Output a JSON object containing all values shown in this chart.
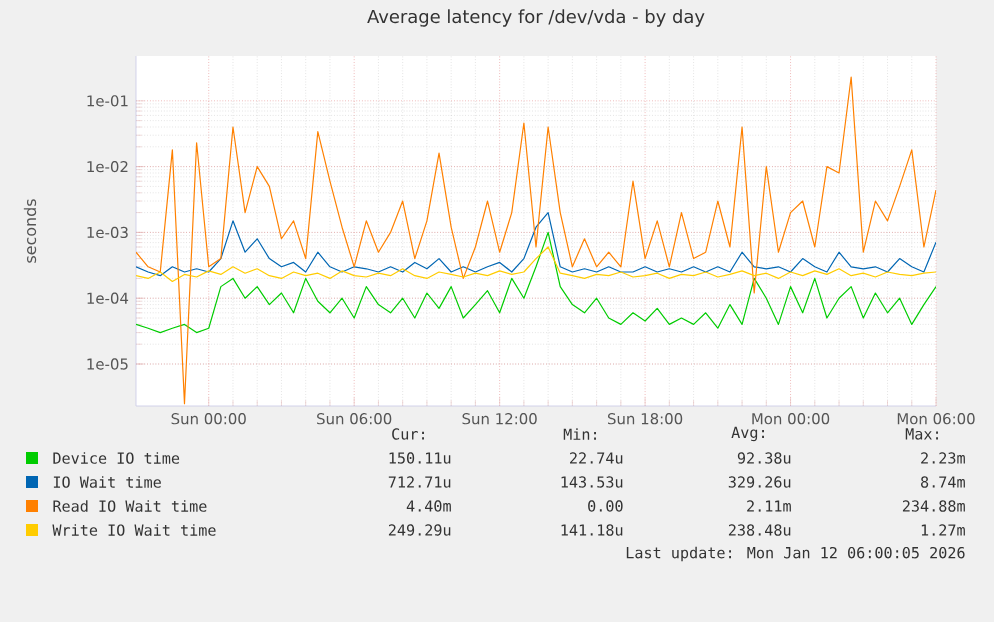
{
  "chart_data": {
    "type": "line",
    "title": "Average latency for /dev/vda - by day",
    "ylabel": "seconds",
    "log": true,
    "grid": true,
    "legend": "bottom",
    "xlim": [
      "2026-01-10T21:00",
      "2026-01-12T06:00"
    ],
    "xticks": [
      {
        "value": "2026-01-11T00:00",
        "label": "Sun 00:00"
      },
      {
        "value": "2026-01-11T06:00",
        "label": "Sun 06:00"
      },
      {
        "value": "2026-01-11T12:00",
        "label": "Sun 12:00"
      },
      {
        "value": "2026-01-11T18:00",
        "label": "Sun 18:00"
      },
      {
        "value": "2026-01-12T00:00",
        "label": "Mon 00:00"
      },
      {
        "value": "2026-01-12T06:00",
        "label": "Mon 06:00"
      }
    ],
    "ylim": [
      2.3e-06,
      0.48
    ],
    "yticks": [
      {
        "value": 1e-05,
        "label": "1e-05"
      },
      {
        "value": 0.0001,
        "label": "1e-04"
      },
      {
        "value": 0.001,
        "label": "1e-03"
      },
      {
        "value": 0.01,
        "label": "1e-02"
      },
      {
        "value": 0.1,
        "label": "1e-01"
      }
    ],
    "x": [
      "2026-01-10T21:00",
      "2026-01-10T21:30",
      "2026-01-10T22:00",
      "2026-01-10T22:30",
      "2026-01-10T23:00",
      "2026-01-10T23:30",
      "2026-01-11T00:00",
      "2026-01-11T00:30",
      "2026-01-11T01:00",
      "2026-01-11T01:30",
      "2026-01-11T02:00",
      "2026-01-11T02:30",
      "2026-01-11T03:00",
      "2026-01-11T03:30",
      "2026-01-11T04:00",
      "2026-01-11T04:30",
      "2026-01-11T05:00",
      "2026-01-11T05:30",
      "2026-01-11T06:00",
      "2026-01-11T06:30",
      "2026-01-11T07:00",
      "2026-01-11T07:30",
      "2026-01-11T08:00",
      "2026-01-11T08:30",
      "2026-01-11T09:00",
      "2026-01-11T09:30",
      "2026-01-11T10:00",
      "2026-01-11T10:30",
      "2026-01-11T11:00",
      "2026-01-11T11:30",
      "2026-01-11T12:00",
      "2026-01-11T12:30",
      "2026-01-11T13:00",
      "2026-01-11T13:30",
      "2026-01-11T14:00",
      "2026-01-11T14:30",
      "2026-01-11T15:00",
      "2026-01-11T15:30",
      "2026-01-11T16:00",
      "2026-01-11T16:30",
      "2026-01-11T17:00",
      "2026-01-11T17:30",
      "2026-01-11T18:00",
      "2026-01-11T18:30",
      "2026-01-11T19:00",
      "2026-01-11T19:30",
      "2026-01-11T20:00",
      "2026-01-11T20:30",
      "2026-01-11T21:00",
      "2026-01-11T21:30",
      "2026-01-11T22:00",
      "2026-01-11T22:30",
      "2026-01-11T23:00",
      "2026-01-11T23:30",
      "2026-01-12T00:00",
      "2026-01-12T00:30",
      "2026-01-12T01:00",
      "2026-01-12T01:30",
      "2026-01-12T02:00",
      "2026-01-12T02:30",
      "2026-01-12T03:00",
      "2026-01-12T03:30",
      "2026-01-12T04:00",
      "2026-01-12T04:30",
      "2026-01-12T05:00",
      "2026-01-12T05:30",
      "2026-01-12T06:00"
    ],
    "series": [
      {
        "name": "Device IO time",
        "color": "#00cc00",
        "values": [
          4e-05,
          3.5e-05,
          3e-05,
          3.5e-05,
          4e-05,
          3e-05,
          3.5e-05,
          0.00015,
          0.0002,
          0.0001,
          0.00015,
          8e-05,
          0.00012,
          6e-05,
          0.0002,
          9e-05,
          6e-05,
          0.0001,
          5e-05,
          0.00015,
          8e-05,
          6e-05,
          0.0001,
          5e-05,
          0.00012,
          7e-05,
          0.00015,
          5e-05,
          8e-05,
          0.00013,
          6e-05,
          0.0002,
          0.0001,
          0.0003,
          0.001,
          0.00015,
          8e-05,
          6e-05,
          0.0001,
          5e-05,
          4e-05,
          6e-05,
          4.5e-05,
          7e-05,
          4e-05,
          5e-05,
          4e-05,
          6e-05,
          3.5e-05,
          8e-05,
          4e-05,
          0.0002,
          0.0001,
          4e-05,
          0.00015,
          6e-05,
          0.0002,
          5e-05,
          0.0001,
          0.00015,
          5e-05,
          0.00012,
          6e-05,
          0.0001,
          4e-05,
          8e-05,
          0.00015
        ]
      },
      {
        "name": "IO Wait time",
        "color": "#0066b3",
        "values": [
          0.0003,
          0.00025,
          0.00022,
          0.0003,
          0.00025,
          0.00028,
          0.00025,
          0.0004,
          0.0015,
          0.0005,
          0.0008,
          0.0004,
          0.0003,
          0.00035,
          0.00025,
          0.0005,
          0.0003,
          0.00025,
          0.0003,
          0.00028,
          0.00025,
          0.0003,
          0.00025,
          0.00035,
          0.00028,
          0.0004,
          0.00025,
          0.0003,
          0.00025,
          0.0003,
          0.00035,
          0.00025,
          0.0004,
          0.0012,
          0.002,
          0.0003,
          0.00025,
          0.00028,
          0.00025,
          0.0003,
          0.00025,
          0.00025,
          0.0003,
          0.00025,
          0.00028,
          0.00025,
          0.0003,
          0.00025,
          0.0003,
          0.00025,
          0.0005,
          0.0003,
          0.00028,
          0.0003,
          0.00025,
          0.0004,
          0.0003,
          0.00025,
          0.0005,
          0.0003,
          0.00028,
          0.0003,
          0.00025,
          0.0004,
          0.0003,
          0.00025,
          0.00071
        ]
      },
      {
        "name": "Read IO Wait time",
        "color": "#ff8000",
        "values": [
          0.0005,
          0.0003,
          0.00025,
          0.018,
          2.5e-06,
          0.023,
          0.0003,
          0.0004,
          0.04,
          0.002,
          0.01,
          0.005,
          0.0008,
          0.0015,
          0.0004,
          0.034,
          0.006,
          0.0012,
          0.0003,
          0.0015,
          0.0005,
          0.001,
          0.003,
          0.0004,
          0.0015,
          0.016,
          0.0012,
          0.0002,
          0.0006,
          0.003,
          0.0005,
          0.002,
          0.046,
          0.0006,
          0.04,
          0.002,
          0.0003,
          0.0008,
          0.0003,
          0.0005,
          0.0003,
          0.006,
          0.0004,
          0.0015,
          0.0003,
          0.002,
          0.0004,
          0.0005,
          0.003,
          0.0006,
          0.04,
          0.00012,
          0.01,
          0.0005,
          0.002,
          0.003,
          0.0006,
          0.01,
          0.008,
          0.23,
          0.0005,
          0.003,
          0.0015,
          0.005,
          0.018,
          0.0006,
          0.0044
        ]
      },
      {
        "name": "Write IO Wait time",
        "color": "#ffcc00",
        "values": [
          0.00022,
          0.0002,
          0.00025,
          0.00018,
          0.00023,
          0.00021,
          0.00026,
          0.00023,
          0.0003,
          0.00024,
          0.00028,
          0.00022,
          0.0002,
          0.00025,
          0.00022,
          0.00024,
          0.0002,
          0.00026,
          0.00022,
          0.00021,
          0.00024,
          0.00022,
          0.00028,
          0.00022,
          0.0002,
          0.00025,
          0.00023,
          0.00021,
          0.00024,
          0.00022,
          0.00026,
          0.00023,
          0.00025,
          0.0004,
          0.0006,
          0.00024,
          0.00022,
          0.0002,
          0.00023,
          0.00022,
          0.00025,
          0.00021,
          0.00022,
          0.00024,
          0.0002,
          0.00023,
          0.00022,
          0.00025,
          0.00021,
          0.00023,
          0.00026,
          0.00022,
          0.00024,
          0.0002,
          0.00025,
          0.00022,
          0.00026,
          0.00023,
          0.00028,
          0.00022,
          0.00024,
          0.00021,
          0.00025,
          0.00023,
          0.00022,
          0.00024,
          0.00025
        ]
      }
    ],
    "annotations": [
      "Cur:",
      "Min:",
      "Avg:",
      "Max:",
      "150.11u",
      "22.74u",
      "92.38u",
      "2.23m",
      "712.71u",
      "143.53u",
      "329.26u",
      "8.74m",
      "4.40m",
      "0.00",
      "2.11m",
      "234.88m",
      "249.29u",
      "141.18u",
      "238.48u",
      "1.27m",
      "Last update: Mon Jan 12 06:00:05 2026"
    ]
  }
}
